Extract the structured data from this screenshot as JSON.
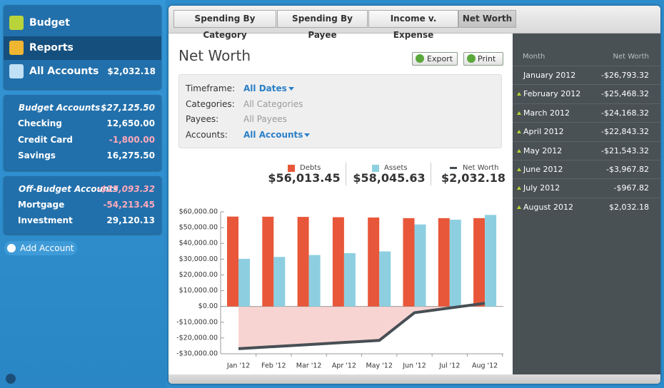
{
  "sidebar": {
    "nav": [
      {
        "label": "Budget"
      },
      {
        "label": "Reports"
      },
      {
        "label": "All Accounts",
        "amount": "$2,032.18"
      }
    ],
    "groups": [
      {
        "title": "Budget Accounts",
        "total": "$27,125.50",
        "accounts": [
          {
            "name": "Checking",
            "amount": "12,650.00"
          },
          {
            "name": "Credit Card",
            "amount": "-1,800.00"
          },
          {
            "name": "Savings",
            "amount": "16,275.50"
          }
        ]
      },
      {
        "title": "Off-Budget Accounts",
        "total": "-$25,093.32",
        "accounts": [
          {
            "name": "Mortgage",
            "amount": "-54,213.45"
          },
          {
            "name": "Investment",
            "amount": "29,120.13"
          }
        ]
      }
    ],
    "add_account": "Add Account"
  },
  "tabs": [
    "Spending By Category",
    "Spending By Payee",
    "Income v. Expense",
    "Net Worth"
  ],
  "report": {
    "title": "Net Worth",
    "buttons": [
      "Export",
      "Print"
    ],
    "filters": [
      {
        "label": "Timeframe:",
        "value": "All Dates"
      },
      {
        "label": "Categories:",
        "value": "All Categories"
      },
      {
        "label": "Payees:",
        "value": "All Payees"
      },
      {
        "label": "Accounts:",
        "value": "All Accounts"
      }
    ],
    "summary": [
      "$56,013.45",
      "$58,045.63",
      "$2,032.18"
    ]
  },
  "chart_data": {
    "type": "bar-line",
    "categories": [
      "Jan '12",
      "Feb '12",
      "Mar '12",
      "Apr '12",
      "May '12",
      "Jun '12",
      "Jul '12",
      "Aug '12"
    ],
    "series": [
      {
        "name": "Debts",
        "color": "#e8573a",
        "values": [
          57000,
          56900,
          56800,
          56600,
          56400,
          56000,
          56000,
          56013.45
        ]
      },
      {
        "name": "Assets",
        "color": "#8dcfe0",
        "values": [
          30200,
          31400,
          32600,
          33800,
          34900,
          52000,
          55000,
          58045.63
        ]
      },
      {
        "name": "Net Worth",
        "color": "#474f54",
        "fill_color": "#f7d4d2",
        "values": [
          -26793.32,
          -25468.32,
          -24168.32,
          -22843.32,
          -21543.32,
          -3967.82,
          -967.82,
          2032.18
        ]
      }
    ],
    "ylim": [
      -30000,
      60000
    ],
    "yticks": [
      {
        "value": -30000,
        "label": "-$30,000.00"
      },
      {
        "value": -20000,
        "label": "-$20,000.00"
      },
      {
        "value": -10000,
        "label": "-$10,000.00"
      },
      {
        "value": 0,
        "label": "$0.00"
      },
      {
        "value": 10000,
        "label": "$10,000.00"
      },
      {
        "value": 20000,
        "label": "$20,000.00"
      },
      {
        "value": 30000,
        "label": "$30,000.00"
      },
      {
        "value": 40000,
        "label": "$40,000.00"
      },
      {
        "value": 50000,
        "label": "$50,000.00"
      },
      {
        "value": 60000,
        "label": "$60,000.00"
      }
    ]
  },
  "table": {
    "headers": [
      "Month",
      "Net Worth"
    ],
    "rows": [
      [
        "January 2012",
        "-$26,793.32"
      ],
      [
        "February 2012",
        "-$25,468.32"
      ],
      [
        "March 2012",
        "-$24,168.32"
      ],
      [
        "April 2012",
        "-$22,843.32"
      ],
      [
        "May 2012",
        "-$21,543.32"
      ],
      [
        "June 2012",
        "-$3,967.82"
      ],
      [
        "July 2012",
        "-$967.82"
      ],
      [
        "August 2012",
        "$2,032.18"
      ]
    ]
  }
}
